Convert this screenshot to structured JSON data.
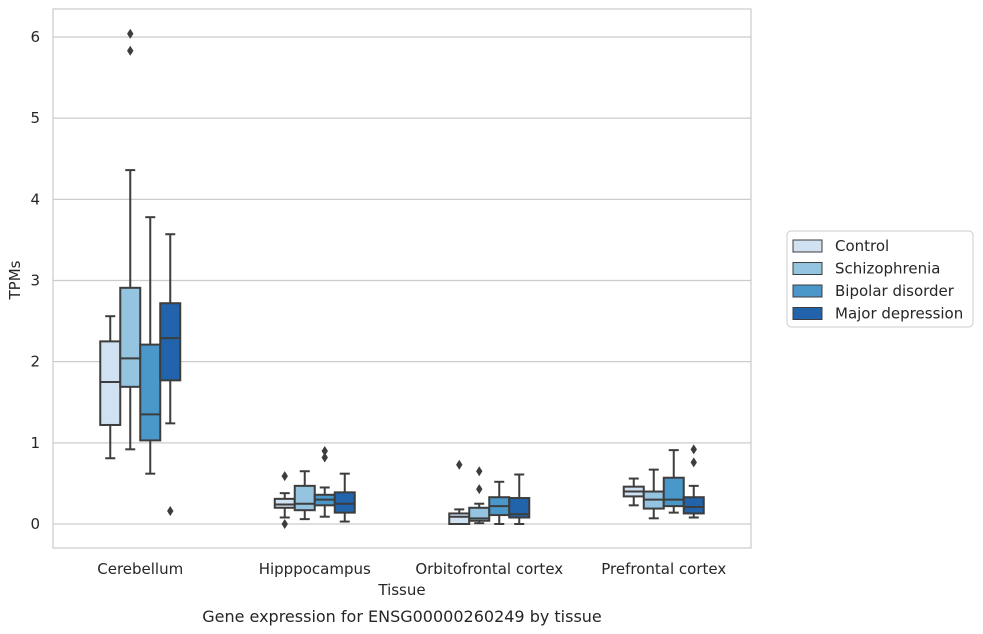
{
  "caption": "Gene expression for ENSG00000260249 by tissue",
  "chart_data": {
    "type": "boxplot",
    "xlabel": "Tissue",
    "ylabel": "TPMs",
    "ylim": [
      -0.3,
      6.35
    ],
    "yticks": [
      0,
      1,
      2,
      3,
      4,
      5,
      6
    ],
    "grid": "horizontal",
    "legend_position": "right",
    "categories": [
      "Cerebellum",
      "Hipppocampus",
      "Orbitofrontal cortex",
      "Prefrontal cortex"
    ],
    "series": [
      {
        "name": "Control",
        "color": "#d0e1f2",
        "boxes": [
          {
            "whislo": 0.81,
            "q1": 1.22,
            "med": 1.75,
            "q3": 2.25,
            "whishi": 2.56,
            "fliers": []
          },
          {
            "whislo": 0.08,
            "q1": 0.2,
            "med": 0.24,
            "q3": 0.31,
            "whishi": 0.38,
            "fliers": [
              0.59,
              0.0
            ]
          },
          {
            "whislo": 0.0,
            "q1": 0.0,
            "med": 0.09,
            "q3": 0.13,
            "whishi": 0.18,
            "fliers": [
              0.73
            ]
          },
          {
            "whislo": 0.23,
            "q1": 0.34,
            "med": 0.4,
            "q3": 0.46,
            "whishi": 0.56,
            "fliers": []
          }
        ]
      },
      {
        "name": "Schizophrenia",
        "color": "#94c4df",
        "boxes": [
          {
            "whislo": 0.92,
            "q1": 1.69,
            "med": 2.04,
            "q3": 2.91,
            "whishi": 4.36,
            "fliers": [
              6.04,
              5.83
            ]
          },
          {
            "whislo": 0.06,
            "q1": 0.17,
            "med": 0.25,
            "q3": 0.47,
            "whishi": 0.65,
            "fliers": []
          },
          {
            "whislo": 0.01,
            "q1": 0.04,
            "med": 0.07,
            "q3": 0.2,
            "whishi": 0.25,
            "fliers": [
              0.65,
              0.43
            ]
          },
          {
            "whislo": 0.07,
            "q1": 0.19,
            "med": 0.3,
            "q3": 0.4,
            "whishi": 0.67,
            "fliers": []
          }
        ]
      },
      {
        "name": "Bipolar disorder",
        "color": "#4a98c9",
        "boxes": [
          {
            "whislo": 0.62,
            "q1": 1.03,
            "med": 1.35,
            "q3": 2.21,
            "whishi": 3.78,
            "fliers": []
          },
          {
            "whislo": 0.09,
            "q1": 0.23,
            "med": 0.3,
            "q3": 0.36,
            "whishi": 0.45,
            "fliers": [
              0.9,
              0.82
            ]
          },
          {
            "whislo": 0.0,
            "q1": 0.11,
            "med": 0.22,
            "q3": 0.33,
            "whishi": 0.52,
            "fliers": []
          },
          {
            "whislo": 0.14,
            "q1": 0.22,
            "med": 0.3,
            "q3": 0.57,
            "whishi": 0.91,
            "fliers": []
          }
        ]
      },
      {
        "name": "Major depression",
        "color": "#2164ab",
        "boxes": [
          {
            "whislo": 1.24,
            "q1": 1.77,
            "med": 2.29,
            "q3": 2.72,
            "whishi": 3.57,
            "fliers": [
              0.16
            ]
          },
          {
            "whislo": 0.03,
            "q1": 0.14,
            "med": 0.25,
            "q3": 0.39,
            "whishi": 0.62,
            "fliers": []
          },
          {
            "whislo": 0.0,
            "q1": 0.08,
            "med": 0.12,
            "q3": 0.32,
            "whishi": 0.61,
            "fliers": []
          },
          {
            "whislo": 0.08,
            "q1": 0.13,
            "med": 0.21,
            "q3": 0.33,
            "whishi": 0.47,
            "fliers": [
              0.92,
              0.76
            ]
          }
        ]
      }
    ]
  }
}
